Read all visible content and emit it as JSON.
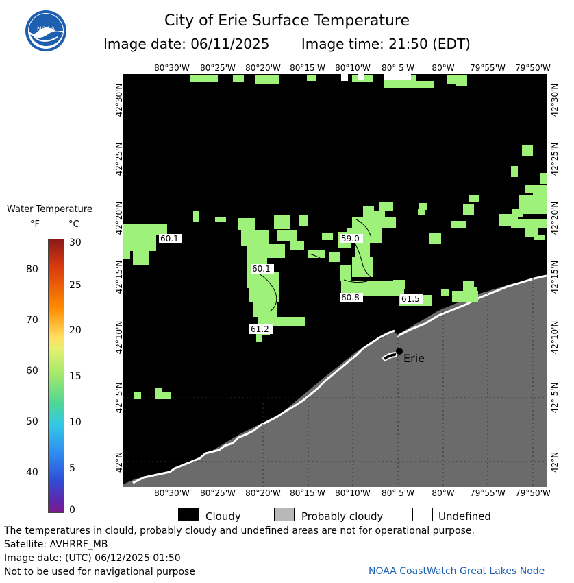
{
  "header": {
    "title": "City of Erie Surface Temperature",
    "image_date": "Image date: 06/11/2025",
    "image_time": "Image time: 21:50 (EDT)"
  },
  "map": {
    "top_ticks": [
      "80°30'W",
      "80°25'W",
      "80°20'W",
      "80°15'W",
      "80°10'W",
      "80° 5'W",
      "80°W",
      "79°55'W",
      "79°50'W"
    ],
    "bottom_ticks": [
      "80°30'W",
      "80°25'W",
      "80°20'W",
      "80°15'W",
      "80°10'W",
      "80° 5'W",
      "80°W",
      "79°55'W",
      "79°50'W"
    ],
    "lat_ticks": [
      "42°30'N",
      "42°25'N",
      "42°20'N",
      "42°15'N",
      "42°10'N",
      "42° 5'N",
      "42°N"
    ],
    "city_label": "Erie",
    "temp_labels": [
      "60.1",
      "59.0",
      "60.1",
      "60.8",
      "61.5",
      "61.2"
    ],
    "colors": {
      "cloud": "#000000",
      "land": "#6b6b6b",
      "water": "#9ef27a"
    }
  },
  "legend": {
    "title": "Water Temperature",
    "unit_f": "°F",
    "unit_c": "°C",
    "f_ticks": [
      "80",
      "70",
      "60",
      "50",
      "40"
    ],
    "c_ticks": [
      "30",
      "25",
      "20",
      "15",
      "10",
      "5",
      "0"
    ]
  },
  "key": {
    "cloudy": "Cloudy",
    "probably_cloudy": "Probably cloudy",
    "undefined": "Undefined"
  },
  "notes": {
    "disclaimer": "The temperatures in clould, probably cloudy and undefined areas are not for operational purpose.",
    "satellite": "Satellite: AVHRRF_MB",
    "image_date_utc": "Image date: (UTC) 06/12/2025  01:50",
    "navigation": "Not to be used for navigational purpose",
    "credit": "NOAA CoastWatch Great Lakes Node"
  }
}
